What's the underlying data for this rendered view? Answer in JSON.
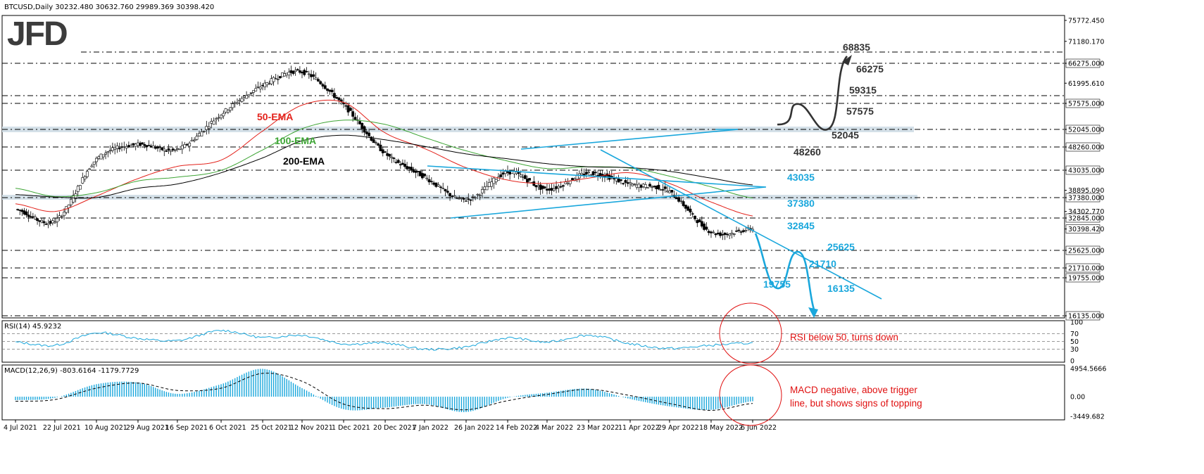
{
  "header": {
    "symbol_line": "BTCUSD,Daily  30232.480 30632.760 29989.369 30398.420",
    "logo_text": "JFD",
    "rsi_title": "RSI(14) 45.9232",
    "macd_title": "MACD(12,26,9) -803.6164 -1179.7729"
  },
  "chart_data": [
    {
      "type": "line",
      "title": "BTCUSD,Daily",
      "subtitle": "30232.480 30632.760 29989.369 30398.420",
      "last_close": 30398.42,
      "ylim": [
        16135,
        78000
      ],
      "x_tick_labels": [
        "4 Jul 2021",
        "22 Jul 2021",
        "10 Aug 2021",
        "29 Aug 2021",
        "16 Sep 2021",
        "6 Oct 2021",
        "25 Oct 2021",
        "12 Nov 2021",
        "1 Dec 2021",
        "20 Dec 2021",
        "7 Jan 2022",
        "26 Jan 2022",
        "14 Feb 2022",
        "4 Mar 2022",
        "23 Mar 2022",
        "11 Apr 2022",
        "29 Apr 2022",
        "18 May 2022",
        "6 Jun 2022"
      ],
      "y_tick_labels": [
        "75772.450",
        "71180.170",
        "66275.000",
        "61995.610",
        "57575.000",
        "52045.000",
        "48260.000",
        "43035.000",
        "38895.090",
        "37380.000",
        "34302.770",
        "32845.000",
        "30398.420",
        "25625.000",
        "21710.000",
        "19755.000",
        "16135.000"
      ],
      "level_labels": [
        "68835.000",
        "66275.000",
        "59315.000",
        "57575.000",
        "52045.000",
        "48260.000",
        "43035.000",
        "37380.000",
        "32845.000",
        "30398.420",
        "25625.000",
        "21710.000",
        "19755.000",
        "16135.000"
      ],
      "levels": [
        68835,
        66275,
        59315,
        57575,
        52045,
        48260,
        43035,
        37380,
        32845,
        25625,
        21710,
        19755,
        16135
      ],
      "bullish_scenario": {
        "color": "#333333",
        "labels": [
          "68835",
          "66275",
          "59315",
          "57575",
          "52045",
          "48260"
        ]
      },
      "bearish_scenario": {
        "color": "#1aa7dc",
        "labels": [
          "43035",
          "37380",
          "32845",
          "25625",
          "21710",
          "19755",
          "16135"
        ]
      },
      "series": [
        {
          "name": "BTCUSD",
          "color": "#000000",
          "x": [
            "4 Jul 2021",
            "22 Jul 2021",
            "10 Aug 2021",
            "29 Aug 2021",
            "16 Sep 2021",
            "6 Oct 2021",
            "25 Oct 2021",
            "12 Nov 2021",
            "1 Dec 2021",
            "20 Dec 2021",
            "7 Jan 2022",
            "26 Jan 2022",
            "14 Feb 2022",
            "4 Mar 2022",
            "23 Mar 2022",
            "11 Apr 2022",
            "29 Apr 2022",
            "18 May 2022",
            "6 Jun 2022"
          ],
          "values": [
            34800,
            32200,
            45500,
            48800,
            47700,
            55300,
            61500,
            64400,
            57200,
            46800,
            41600,
            36900,
            42600,
            39100,
            42400,
            40100,
            38500,
            29700,
            30400
          ]
        },
        {
          "name": "50-EMA",
          "color": "#e3221b",
          "x": [
            "4 Jul 2021",
            "22 Jul 2021",
            "10 Aug 2021",
            "29 Aug 2021",
            "16 Sep 2021",
            "6 Oct 2021",
            "25 Oct 2021",
            "12 Nov 2021",
            "1 Dec 2021",
            "20 Dec 2021",
            "7 Jan 2022",
            "26 Jan 2022",
            "14 Feb 2022",
            "4 Mar 2022",
            "23 Mar 2022",
            "11 Apr 2022",
            "29 Apr 2022",
            "18 May 2022",
            "6 Jun 2022"
          ],
          "values": [
            36000,
            34300,
            37700,
            41300,
            43900,
            45300,
            51700,
            57200,
            57800,
            51300,
            47900,
            43600,
            41000,
            40300,
            41400,
            42500,
            40300,
            36400,
            33300
          ]
        },
        {
          "name": "100-EMA",
          "color": "#3ea535",
          "x": [
            "4 Jul 2021",
            "22 Jul 2021",
            "10 Aug 2021",
            "29 Aug 2021",
            "16 Sep 2021",
            "6 Oct 2021",
            "25 Oct 2021",
            "12 Nov 2021",
            "1 Dec 2021",
            "20 Dec 2021",
            "7 Jan 2022",
            "26 Jan 2022",
            "14 Feb 2022",
            "4 Mar 2022",
            "23 Mar 2022",
            "11 Apr 2022",
            "29 Apr 2022",
            "18 May 2022",
            "6 Jun 2022"
          ],
          "values": [
            39300,
            37600,
            38400,
            40800,
            41600,
            43000,
            47600,
            52200,
            54000,
            53100,
            50300,
            47400,
            45100,
            43400,
            43800,
            43500,
            41800,
            39600,
            37300
          ]
        },
        {
          "name": "200-EMA",
          "color": "#000000",
          "x": [
            "4 Jul 2021",
            "22 Jul 2021",
            "10 Aug 2021",
            "29 Aug 2021",
            "16 Sep 2021",
            "6 Oct 2021",
            "25 Oct 2021",
            "12 Nov 2021",
            "1 Dec 2021",
            "20 Dec 2021",
            "7 Jan 2022",
            "26 Jan 2022",
            "14 Feb 2022",
            "4 Mar 2022",
            "23 Mar 2022",
            "11 Apr 2022",
            "29 Apr 2022",
            "18 May 2022",
            "6 Jun 2022"
          ],
          "values": [
            38000,
            37500,
            37400,
            39300,
            40200,
            42500,
            45800,
            49600,
            50800,
            49800,
            48400,
            46700,
            45600,
            44500,
            43800,
            43600,
            42800,
            41400,
            40000
          ]
        }
      ]
    },
    {
      "type": "line",
      "title": "RSI(14) 45.9232",
      "ylim": [
        0,
        100
      ],
      "y_tick_labels": [
        "100",
        "70",
        "50",
        "30",
        "0"
      ],
      "levels": [
        70,
        50,
        30
      ],
      "annotation": "RSI below 50, turns down",
      "series": [
        {
          "name": "RSI(14)",
          "color": "#1aa7dc",
          "x": [
            "4 Jul 2021",
            "22 Jul 2021",
            "10 Aug 2021",
            "29 Aug 2021",
            "16 Sep 2021",
            "6 Oct 2021",
            "25 Oct 2021",
            "12 Nov 2021",
            "1 Dec 2021",
            "20 Dec 2021",
            "7 Jan 2022",
            "26 Jan 2022",
            "14 Feb 2022",
            "4 Mar 2022",
            "23 Mar 2022",
            "11 Apr 2022",
            "29 Apr 2022",
            "18 May 2022",
            "6 Jun 2022"
          ],
          "values": [
            48,
            40,
            72,
            58,
            52,
            78,
            60,
            66,
            44,
            46,
            30,
            36,
            59,
            48,
            66,
            44,
            32,
            40,
            46
          ]
        }
      ]
    },
    {
      "type": "bar",
      "title": "MACD(12,26,9) -803.6164 -1179.7729",
      "ylim": [
        -3449.682,
        4954.5666
      ],
      "y_tick_labels": [
        "4954.5666",
        "0.00",
        "-3449.682"
      ],
      "annotation": "MACD negative, above trigger line, but shows signs of topping",
      "series": [
        {
          "name": "MACD(12,26,9)",
          "color": "#1aa7dc",
          "x": [
            "4 Jul 2021",
            "22 Jul 2021",
            "10 Aug 2021",
            "29 Aug 2021",
            "16 Sep 2021",
            "6 Oct 2021",
            "25 Oct 2021",
            "12 Nov 2021",
            "1 Dec 2021",
            "20 Dec 2021",
            "7 Jan 2022",
            "26 Jan 2022",
            "14 Feb 2022",
            "4 Mar 2022",
            "23 Mar 2022",
            "11 Apr 2022",
            "29 Apr 2022",
            "18 May 2022",
            "6 Jun 2022"
          ],
          "values": [
            -600,
            -200,
            2200,
            2500,
            500,
            2200,
            4900,
            1500,
            -2200,
            -1900,
            -1300,
            -2700,
            -200,
            700,
            1400,
            -400,
            -1700,
            -2300,
            -800
          ]
        },
        {
          "name": "Signal",
          "color": "#000000",
          "x": [
            "4 Jul 2021",
            "22 Jul 2021",
            "10 Aug 2021",
            "29 Aug 2021",
            "16 Sep 2021",
            "6 Oct 2021",
            "25 Oct 2021",
            "12 Nov 2021",
            "1 Dec 2021",
            "20 Dec 2021",
            "7 Jan 2022",
            "26 Jan 2022",
            "14 Feb 2022",
            "4 Mar 2022",
            "23 Mar 2022",
            "11 Apr 2022",
            "29 Apr 2022",
            "18 May 2022",
            "6 Jun 2022"
          ],
          "values": [
            -800,
            -500,
            1500,
            2400,
            1100,
            1500,
            4100,
            2700,
            -1300,
            -2100,
            -1500,
            -2300,
            -700,
            400,
            1300,
            200,
            -1200,
            -2400,
            -1180
          ]
        }
      ]
    }
  ]
}
